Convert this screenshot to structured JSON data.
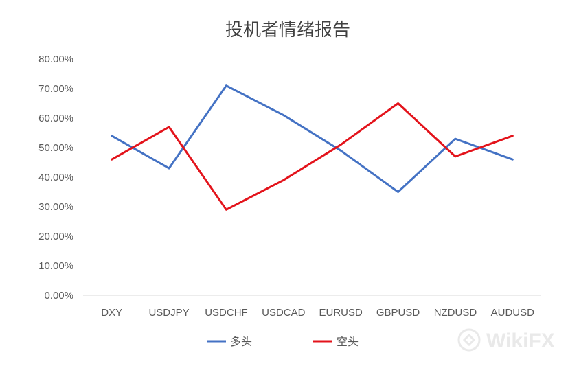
{
  "chart_data": {
    "type": "line",
    "title": "投机者情绪报告",
    "categories": [
      "DXY",
      "USDJPY",
      "USDCHF",
      "USDCAD",
      "EURUSD",
      "GBPUSD",
      "NZDUSD",
      "AUDUSD"
    ],
    "series": [
      {
        "name": "多头",
        "color": "#4472c4",
        "values": [
          54,
          43,
          71,
          61,
          49,
          35,
          53,
          46
        ]
      },
      {
        "name": "空头",
        "color": "#e3131b",
        "values": [
          46,
          57,
          29,
          39,
          51,
          65,
          47,
          54
        ]
      }
    ],
    "ylim": [
      0,
      80
    ],
    "yticks": [
      "0.00%",
      "10.00%",
      "20.00%",
      "30.00%",
      "40.00%",
      "50.00%",
      "60.00%",
      "70.00%",
      "80.00%"
    ],
    "grid": false,
    "legend_position": "bottom"
  },
  "watermark": {
    "text": "WikiFX",
    "color": "#e9e9e9"
  }
}
